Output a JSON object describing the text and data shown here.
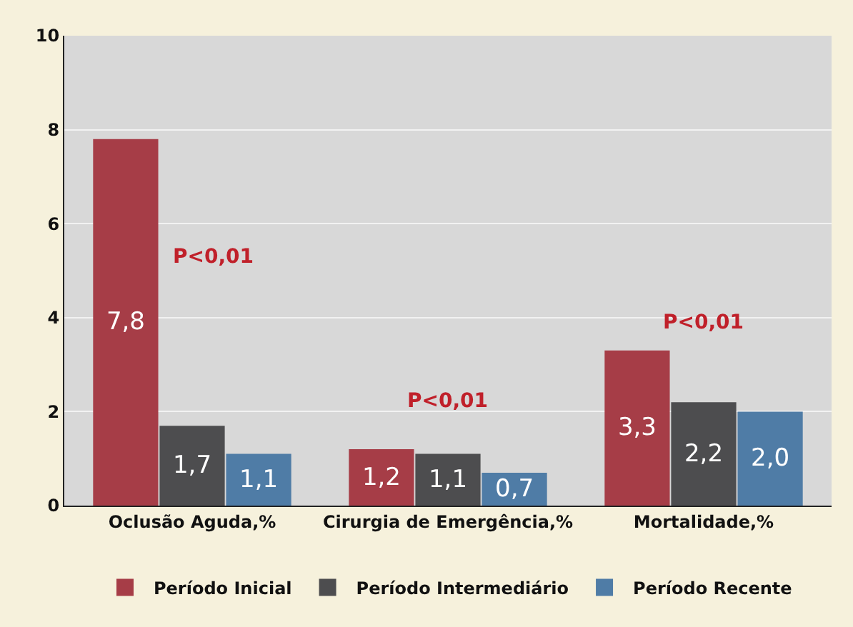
{
  "chart_data": {
    "type": "bar",
    "categories": [
      "Oclusão Aguda,%",
      "Cirurgia de Emergência,%",
      "Mortalidade,%"
    ],
    "series": [
      {
        "name": "Período Inicial",
        "color": "#a63d47",
        "values": [
          7.8,
          1.2,
          3.3
        ],
        "value_labels": [
          "7,8",
          "1,2",
          "3,3"
        ]
      },
      {
        "name": "Período Intermediário",
        "color": "#4d4d4f",
        "values": [
          1.7,
          1.1,
          2.2
        ],
        "value_labels": [
          "1,7",
          "1,1",
          "2,2"
        ]
      },
      {
        "name": "Período Recente",
        "color": "#4f7ca6",
        "values": [
          1.1,
          0.7,
          2.0
        ],
        "value_labels": [
          "1,1",
          "0,7",
          "2,0"
        ]
      }
    ],
    "ylim": [
      0,
      10
    ],
    "yticks": [
      0,
      2,
      4,
      6,
      8,
      10
    ],
    "grid": "y",
    "legend": "bottom",
    "annotations": [
      "P<0,01",
      "P<0,01",
      "P<0,01"
    ]
  }
}
